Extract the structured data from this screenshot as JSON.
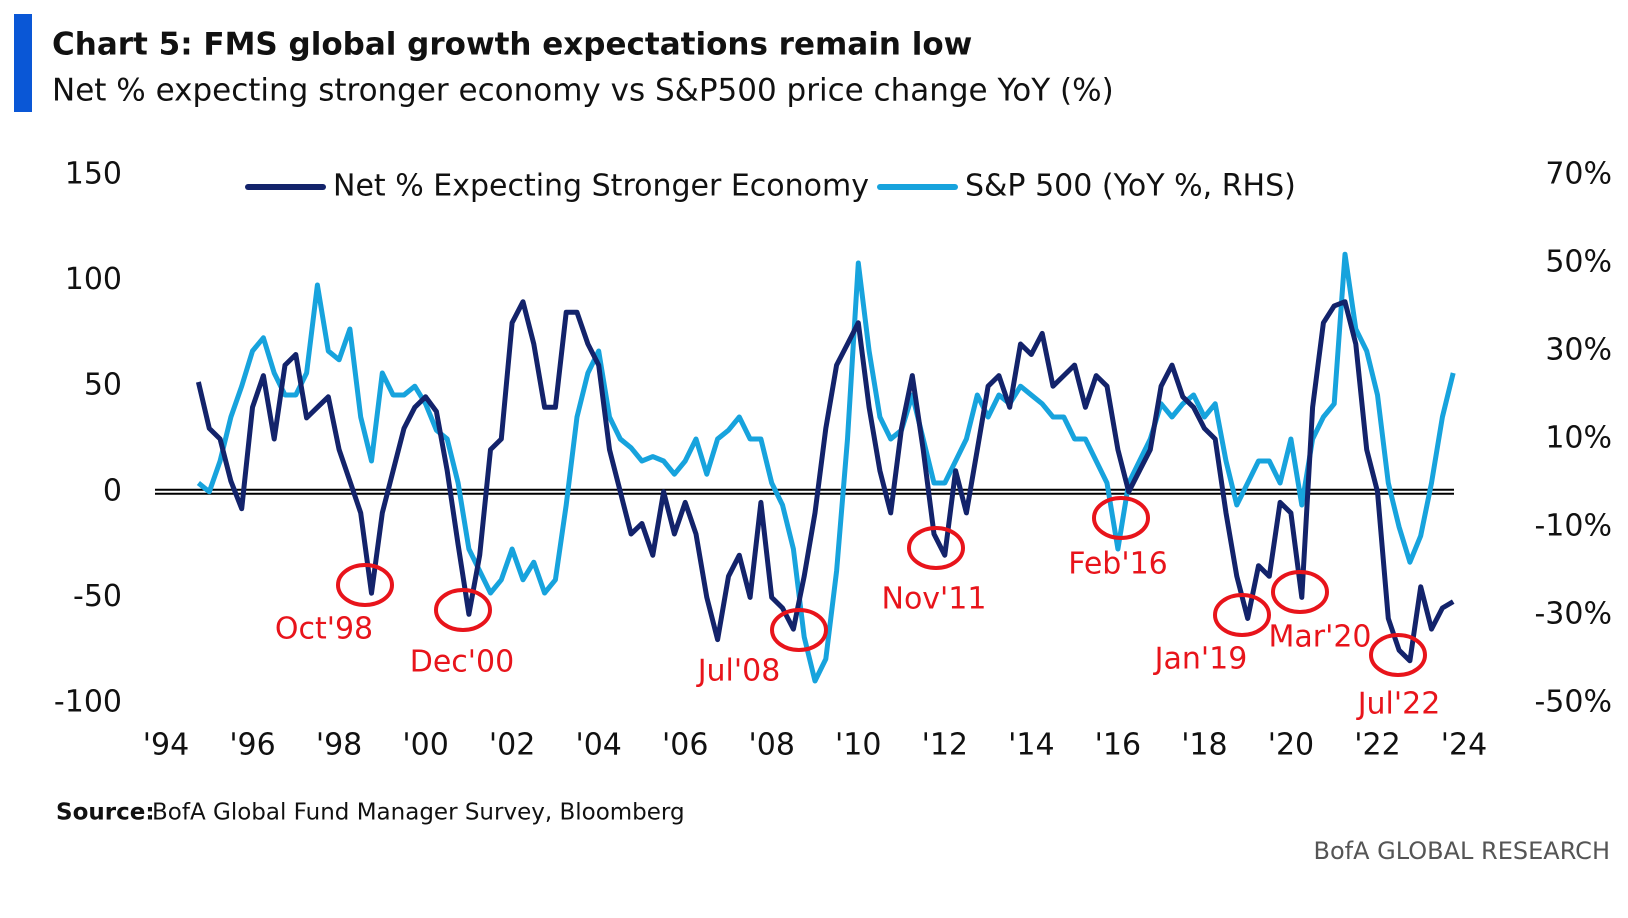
{
  "chart_data": {
    "type": "line",
    "title": "Chart 5: FMS global growth expectations remain low",
    "subtitle": "Net % expecting stronger economy vs S&P500 price change YoY (%)",
    "source_label": "Source:",
    "source": "BofA Global Fund Manager Survey, Bloomberg",
    "brand": "BofA GLOBAL RESEARCH",
    "annotations": [
      "Oct'98",
      "Dec'00",
      "Jul'08",
      "Nov'11",
      "Feb'16",
      "Jan'19",
      "Mar'20",
      "Jul'22"
    ],
    "x": [
      1994.75,
      1995,
      1995.25,
      1995.5,
      1995.75,
      1996,
      1996.25,
      1996.5,
      1996.75,
      1997,
      1997.25,
      1997.5,
      1997.75,
      1998,
      1998.25,
      1998.5,
      1998.75,
      1999,
      1999.25,
      1999.5,
      1999.75,
      2000,
      2000.25,
      2000.5,
      2000.75,
      2001,
      2001.25,
      2001.5,
      2001.75,
      2002,
      2002.25,
      2002.5,
      2002.75,
      2003,
      2003.25,
      2003.5,
      2003.75,
      2004,
      2004.25,
      2004.5,
      2004.75,
      2005,
      2005.25,
      2005.5,
      2005.75,
      2006,
      2006.25,
      2006.5,
      2006.75,
      2007,
      2007.25,
      2007.5,
      2007.75,
      2008,
      2008.25,
      2008.5,
      2008.75,
      2009,
      2009.25,
      2009.5,
      2009.75,
      2010,
      2010.25,
      2010.5,
      2010.75,
      2011,
      2011.25,
      2011.5,
      2011.75,
      2012,
      2012.25,
      2012.5,
      2012.75,
      2013,
      2013.25,
      2013.5,
      2013.75,
      2014,
      2014.25,
      2014.5,
      2014.75,
      2015,
      2015.25,
      2015.5,
      2015.75,
      2016,
      2016.25,
      2016.5,
      2016.75,
      2017,
      2017.25,
      2017.5,
      2017.75,
      2018,
      2018.25,
      2018.5,
      2018.75,
      2019,
      2019.25,
      2019.5,
      2019.75,
      2020,
      2020.25,
      2020.5,
      2020.75,
      2021,
      2021.25,
      2021.5,
      2021.75,
      2022,
      2022.25,
      2022.5,
      2022.75,
      2023,
      2023.25,
      2023.5,
      2023.75
    ],
    "series": [
      {
        "name": "Net % Expecting Stronger Economy",
        "color": "#13236b",
        "axis": "y",
        "values": [
          52,
          30,
          25,
          5,
          -8,
          40,
          55,
          25,
          60,
          65,
          35,
          40,
          45,
          20,
          5,
          -10,
          -48,
          -10,
          10,
          30,
          40,
          45,
          38,
          10,
          -25,
          -58,
          -30,
          20,
          25,
          80,
          90,
          70,
          40,
          40,
          85,
          85,
          70,
          60,
          20,
          0,
          -20,
          -15,
          -30,
          0,
          -20,
          -5,
          -20,
          -50,
          -70,
          -40,
          -30,
          -50,
          -5,
          -50,
          -55,
          -65,
          -40,
          -10,
          30,
          60,
          70,
          80,
          40,
          10,
          -10,
          30,
          55,
          20,
          -20,
          -30,
          10,
          -10,
          20,
          50,
          55,
          40,
          70,
          65,
          75,
          50,
          55,
          60,
          40,
          55,
          50,
          20,
          0,
          10,
          20,
          50,
          60,
          45,
          40,
          30,
          25,
          -10,
          -40,
          -60,
          -35,
          -40,
          -5,
          -10,
          -50,
          40,
          80,
          88,
          90,
          70,
          20,
          0,
          -60,
          -75,
          -80,
          -45,
          -65,
          -55,
          -52
        ]
      },
      {
        "name": "S&P 500 (YoY %, RHS)",
        "color": "#17a3dd",
        "axis": "y2",
        "values": [
          0,
          -2,
          5,
          15,
          22,
          30,
          33,
          25,
          20,
          20,
          25,
          45,
          30,
          28,
          35,
          15,
          5,
          25,
          20,
          20,
          22,
          18,
          12,
          10,
          0,
          -15,
          -20,
          -25,
          -22,
          -15,
          -22,
          -18,
          -25,
          -22,
          -5,
          15,
          25,
          30,
          15,
          10,
          8,
          5,
          6,
          5,
          2,
          5,
          10,
          2,
          10,
          12,
          15,
          10,
          10,
          0,
          -5,
          -15,
          -35,
          -45,
          -40,
          -20,
          10,
          50,
          30,
          15,
          10,
          12,
          20,
          10,
          0,
          0,
          5,
          10,
          20,
          15,
          20,
          18,
          22,
          20,
          18,
          15,
          15,
          10,
          10,
          5,
          0,
          -15,
          0,
          5,
          10,
          18,
          15,
          18,
          20,
          15,
          18,
          5,
          -5,
          0,
          5,
          5,
          0,
          10,
          -5,
          10,
          15,
          18,
          52,
          35,
          30,
          20,
          0,
          -10,
          -18,
          -12,
          0,
          15,
          25
        ]
      }
    ],
    "xlim": [
      1994,
      2024
    ],
    "xticks": [
      {
        "value": 1994,
        "label": "'94"
      },
      {
        "value": 1996,
        "label": "'96"
      },
      {
        "value": 1998,
        "label": "'98"
      },
      {
        "value": 2000,
        "label": "'00"
      },
      {
        "value": 2002,
        "label": "'02"
      },
      {
        "value": 2004,
        "label": "'04"
      },
      {
        "value": 2006,
        "label": "'06"
      },
      {
        "value": 2008,
        "label": "'08"
      },
      {
        "value": 2010,
        "label": "'10"
      },
      {
        "value": 2012,
        "label": "'12"
      },
      {
        "value": 2014,
        "label": "'14"
      },
      {
        "value": 2016,
        "label": "'16"
      },
      {
        "value": 2018,
        "label": "'18"
      },
      {
        "value": 2020,
        "label": "'20"
      },
      {
        "value": 2022,
        "label": "'22"
      },
      {
        "value": 2024,
        "label": "'24"
      }
    ],
    "ylim": [
      -100,
      150
    ],
    "yticks": [
      -100,
      -50,
      0,
      50,
      100,
      150
    ],
    "y2lim": [
      -50,
      70
    ],
    "y2ticks": [
      {
        "value": -50,
        "label": "-50%"
      },
      {
        "value": -30,
        "label": "-30%"
      },
      {
        "value": -10,
        "label": "-10%"
      },
      {
        "value": 10,
        "label": "10%"
      },
      {
        "value": 30,
        "label": "30%"
      },
      {
        "value": 50,
        "label": "50%"
      },
      {
        "value": 70,
        "label": "70%"
      }
    ],
    "annotation_color": "#e8141b",
    "legend": "top"
  }
}
